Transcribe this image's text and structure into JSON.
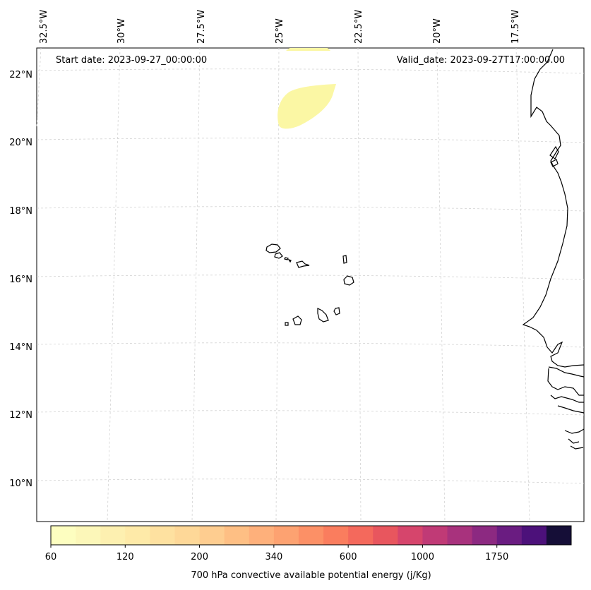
{
  "annotations": {
    "start_date": "Start date: 2023-09-27_00:00:00",
    "valid_date": "Valid_date: 2023-09-27T17:00:00.00"
  },
  "longitude_labels": [
    "32.5°W",
    "30°W",
    "27.5°W",
    "25°W",
    "22.5°W",
    "20°W",
    "17.5°W"
  ],
  "latitude_labels": [
    "22°N",
    "20°N",
    "18°N",
    "16°N",
    "14°N",
    "12°N",
    "10°N"
  ],
  "colorbar": {
    "title": "700 hPa convective available potential energy (j/Kg)",
    "tick_labels": [
      "60",
      "120",
      "200",
      "340",
      "600",
      "1000",
      "1750"
    ],
    "colors": [
      "#fdfec0",
      "#fcf7b9",
      "#fdf0b0",
      "#feeaa8",
      "#fee1a0",
      "#fed898",
      "#fecd90",
      "#febf84",
      "#feb07b",
      "#fda271",
      "#fc9066",
      "#fa7d5e",
      "#f4695c",
      "#e8565e",
      "#d6456c",
      "#c03a76",
      "#a8327d",
      "#8c2981",
      "#6a1c81",
      "#4c117a",
      "#150e37"
    ]
  },
  "map_layers": {
    "cape_color": "#fbf7a4",
    "coastline_color": "#000000",
    "gridline_color": "#d3d3d3"
  }
}
